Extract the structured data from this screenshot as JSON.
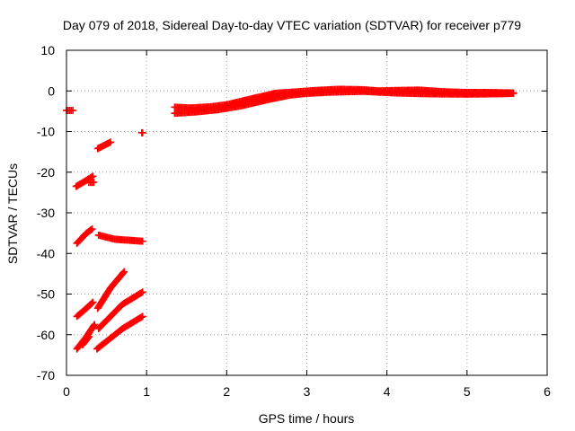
{
  "chart_data": {
    "type": "scatter",
    "title": "Day 079 of 2018, Sidereal Day-to-day VTEC variation (SDTVAR) for receiver p779",
    "xlabel": "GPS time / hours",
    "ylabel": "SDTVAR / TECUs",
    "xlim": [
      0,
      6
    ],
    "ylim": [
      -70,
      10
    ],
    "xticks": [
      "0",
      "1",
      "2",
      "3",
      "4",
      "5",
      "6"
    ],
    "yticks": [
      "10",
      "0",
      "-10",
      "-20",
      "-30",
      "-40",
      "-50",
      "-60",
      "-70"
    ],
    "grid": true,
    "marker": "+",
    "color": "#ff0000",
    "series": [
      {
        "segments": [
          [
            [
              0.0,
              -4.8
            ],
            [
              0.08,
              -4.8
            ]
          ],
          [
            [
              0.12,
              -23.5
            ],
            [
              0.25,
              -22.0
            ],
            [
              0.33,
              -21.0
            ]
          ],
          [
            [
              0.28,
              -22.5
            ],
            [
              0.34,
              -22.5
            ]
          ],
          [
            [
              0.39,
              -14.2
            ],
            [
              0.55,
              -12.6
            ]
          ],
          [
            [
              0.94,
              -10.3
            ],
            [
              0.95,
              -10.3
            ]
          ],
          [
            [
              0.13,
              -37.5
            ],
            [
              0.25,
              -35.0
            ],
            [
              0.32,
              -34.0
            ]
          ],
          [
            [
              0.4,
              -35.5
            ],
            [
              0.6,
              -36.5
            ],
            [
              0.95,
              -37.0
            ]
          ],
          [
            [
              0.13,
              -55.5
            ],
            [
              0.22,
              -54.0
            ],
            [
              0.33,
              -52.0
            ]
          ],
          [
            [
              0.39,
              -53.5
            ],
            [
              0.55,
              -48.5
            ],
            [
              0.72,
              -44.5
            ]
          ],
          [
            [
              0.4,
              -58.5
            ],
            [
              0.7,
              -52.5
            ],
            [
              0.95,
              -49.5
            ]
          ],
          [
            [
              0.13,
              -63.5
            ],
            [
              0.25,
              -60.5
            ],
            [
              0.35,
              -57.5
            ]
          ],
          [
            [
              0.2,
              -62.5
            ],
            [
              0.28,
              -60.5
            ]
          ],
          [
            [
              0.38,
              -63.5
            ],
            [
              0.7,
              -58.5
            ],
            [
              0.95,
              -55.5
            ]
          ],
          [
            [
              1.35,
              -4.0
            ],
            [
              1.55,
              -4.2
            ],
            [
              1.8,
              -3.9
            ],
            [
              2.0,
              -3.4
            ],
            [
              2.3,
              -2.0
            ],
            [
              2.6,
              -0.6
            ],
            [
              2.9,
              -0.2
            ],
            [
              3.1,
              0.1
            ],
            [
              3.4,
              0.4
            ],
            [
              3.7,
              0.3
            ],
            [
              3.9,
              0.0
            ],
            [
              4.1,
              0.1
            ],
            [
              4.4,
              0.2
            ],
            [
              4.7,
              -0.2
            ],
            [
              5.0,
              -0.4
            ],
            [
              5.3,
              -0.4
            ],
            [
              5.58,
              -0.5
            ]
          ],
          [
            [
              1.35,
              -5.5
            ],
            [
              1.6,
              -5.2
            ],
            [
              1.9,
              -4.6
            ],
            [
              2.2,
              -3.6
            ],
            [
              2.5,
              -2.2
            ],
            [
              2.8,
              -1.0
            ],
            [
              3.0,
              -0.6
            ],
            [
              3.3,
              -0.3
            ],
            [
              3.7,
              -0.1
            ],
            [
              4.1,
              -0.5
            ],
            [
              4.5,
              -0.7
            ],
            [
              5.0,
              -0.8
            ],
            [
              5.4,
              -0.7
            ],
            [
              5.58,
              -0.6
            ]
          ]
        ]
      }
    ]
  }
}
